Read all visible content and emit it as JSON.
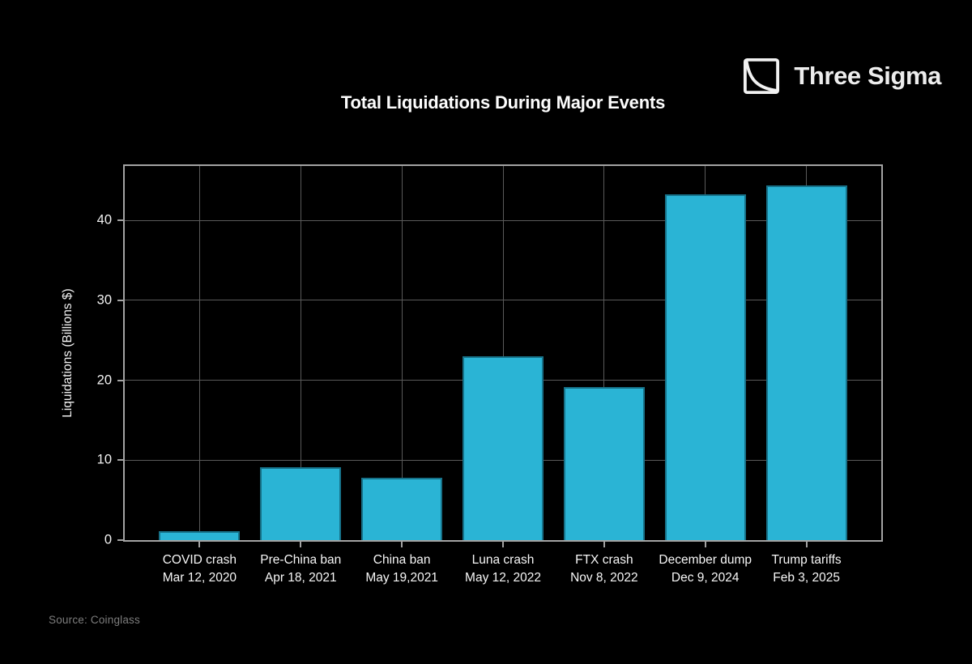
{
  "header": {
    "brand": "Three Sigma"
  },
  "chart_data": {
    "type": "bar",
    "title": "Total Liquidations During Major Events",
    "ylabel": "Liquidations (Billions $)",
    "categories": [
      "COVID crash",
      "Pre-China ban",
      "China ban",
      "Luna crash",
      "FTX crash",
      "December dump",
      "Trump tariffs"
    ],
    "dates": [
      "Mar 12, 2020",
      "Apr 18, 2021",
      "May 19,2021",
      "May 12, 2022",
      "Nov 8, 2022",
      "Dec 9, 2024",
      "Feb 3, 2025"
    ],
    "values": [
      1.1,
      9.1,
      7.8,
      23.0,
      19.1,
      43.3,
      44.4
    ],
    "yticks": [
      0,
      10,
      20,
      30,
      40
    ],
    "ylim": [
      0,
      46.8
    ],
    "grid": true,
    "legend": "none",
    "bar_color": "#2ab4d5",
    "background_color": "#000000",
    "spine_color": "#a3a3a3",
    "gridline_color": "#5a5a5a"
  },
  "footer": {
    "source": "Source: Coinglass"
  },
  "icons": {
    "brand_icon": "decay-curve-square-icon"
  }
}
